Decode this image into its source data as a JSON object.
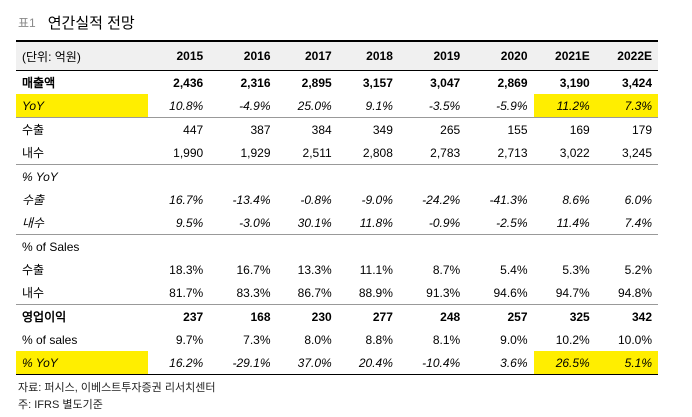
{
  "title": {
    "number": "표1",
    "text": "연간실적 전망"
  },
  "table": {
    "unit_label": "(단위: 억원)",
    "years": [
      "2015",
      "2016",
      "2017",
      "2018",
      "2019",
      "2020",
      "2021E",
      "2022E"
    ],
    "rows": [
      {
        "label": "매출액",
        "values": [
          "2,436",
          "2,316",
          "2,895",
          "3,157",
          "3,047",
          "2,869",
          "3,190",
          "3,424"
        ]
      },
      {
        "label": "YoY",
        "values": [
          "10.8%",
          "-4.9%",
          "25.0%",
          "9.1%",
          "-3.5%",
          "-5.9%",
          "11.2%",
          "7.3%"
        ]
      },
      {
        "label": "수출",
        "values": [
          "447",
          "387",
          "384",
          "349",
          "265",
          "155",
          "169",
          "179"
        ]
      },
      {
        "label": "내수",
        "values": [
          "1,990",
          "1,929",
          "2,511",
          "2,808",
          "2,783",
          "2,713",
          "3,022",
          "3,245"
        ]
      },
      {
        "label": "% YoY",
        "values": [
          "",
          "",
          "",
          "",
          "",
          "",
          "",
          ""
        ]
      },
      {
        "label": "수출",
        "values": [
          "16.7%",
          "-13.4%",
          "-0.8%",
          "-9.0%",
          "-24.2%",
          "-41.3%",
          "8.6%",
          "6.0%"
        ]
      },
      {
        "label": "내수",
        "values": [
          "9.5%",
          "-3.0%",
          "30.1%",
          "11.8%",
          "-0.9%",
          "-2.5%",
          "11.4%",
          "7.4%"
        ]
      },
      {
        "label": "% of Sales",
        "values": [
          "",
          "",
          "",
          "",
          "",
          "",
          "",
          ""
        ]
      },
      {
        "label": "수출",
        "values": [
          "18.3%",
          "16.7%",
          "13.3%",
          "11.1%",
          "8.7%",
          "5.4%",
          "5.3%",
          "5.2%"
        ]
      },
      {
        "label": "내수",
        "values": [
          "81.7%",
          "83.3%",
          "86.7%",
          "88.9%",
          "91.3%",
          "94.6%",
          "94.7%",
          "94.8%"
        ]
      },
      {
        "label": "영업이익",
        "values": [
          "237",
          "168",
          "230",
          "277",
          "248",
          "257",
          "325",
          "342"
        ]
      },
      {
        "label": "% of sales",
        "values": [
          "9.7%",
          "7.3%",
          "8.0%",
          "8.8%",
          "8.1%",
          "9.0%",
          "10.2%",
          "10.0%"
        ]
      },
      {
        "label": "% YoY",
        "values": [
          "16.2%",
          "-29.1%",
          "37.0%",
          "20.4%",
          "-10.4%",
          "3.6%",
          "26.5%",
          "5.1%"
        ]
      }
    ]
  },
  "footnotes": {
    "source": "자료: 퍼시스, 이베스트투자증권 리서치센터",
    "note": "주: IFRS 별도기준"
  },
  "colors": {
    "highlight": "#ffee00"
  }
}
